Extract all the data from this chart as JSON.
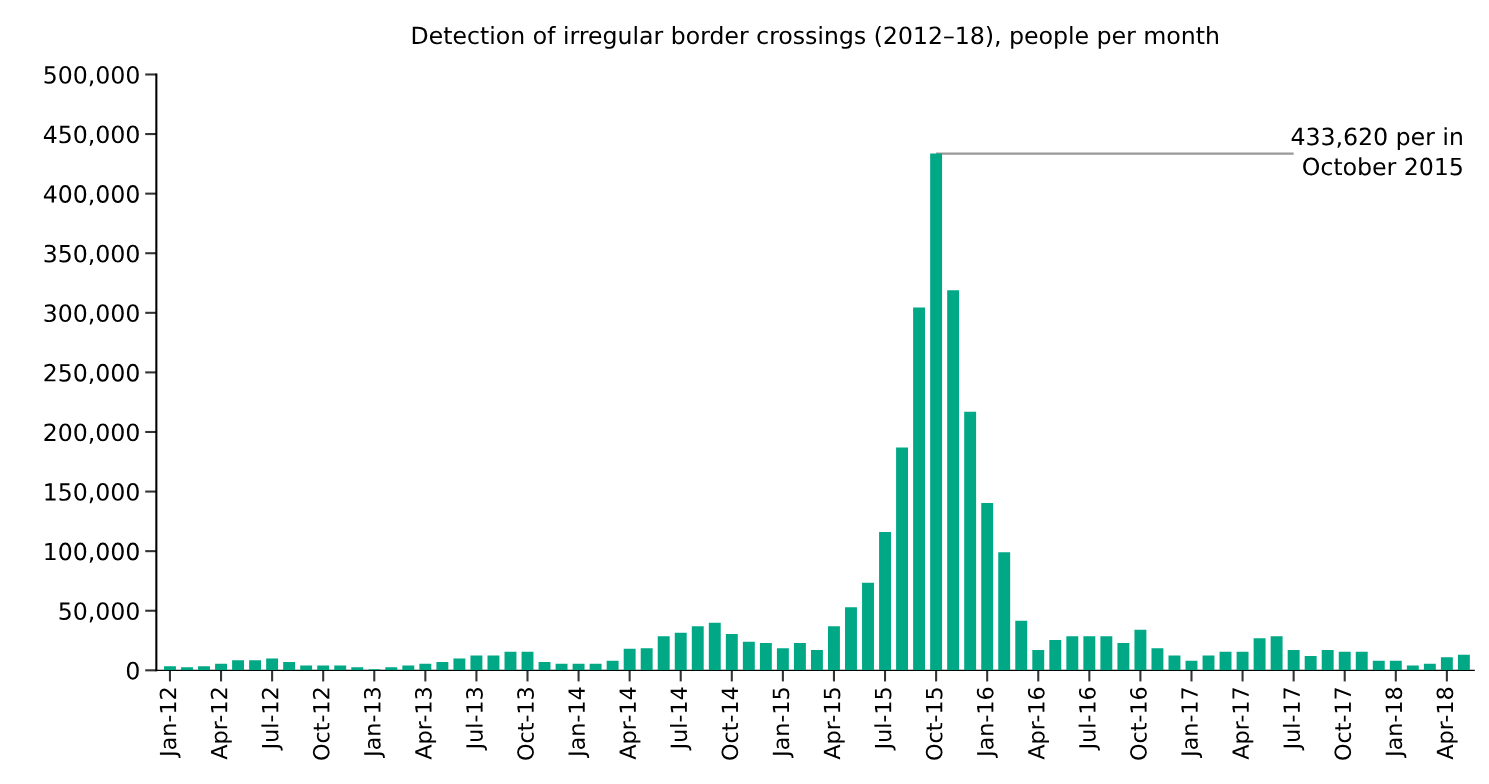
{
  "chart_data": {
    "type": "bar",
    "title": "Detection of irregular border crossings (2012–18), people per month",
    "categories": [
      "Jan-12",
      null,
      null,
      "Apr-12",
      null,
      null,
      "Jul-12",
      null,
      null,
      "Oct-12",
      null,
      null,
      "Jan-13",
      null,
      null,
      "Apr-13",
      null,
      null,
      "Jul-13",
      null,
      null,
      "Oct-13",
      null,
      null,
      "Jan-14",
      null,
      null,
      "Apr-14",
      null,
      null,
      "Jul-14",
      null,
      null,
      "Oct-14",
      null,
      null,
      "Jan-15",
      null,
      null,
      "Apr-15",
      null,
      null,
      "Jul-15",
      null,
      null,
      "Oct-15",
      null,
      null,
      "Jan-16",
      null,
      null,
      "Apr-16",
      null,
      null,
      "Jul-16",
      null,
      null,
      "Oct-16",
      null,
      null,
      "Jan-17",
      null,
      null,
      "Apr-17",
      null,
      null,
      "Jul-17",
      null,
      null,
      "Oct-17",
      null,
      null,
      "Jan-18",
      null,
      null,
      "Apr-18",
      null
    ],
    "values": [
      3500,
      2500,
      3500,
      5500,
      8500,
      8500,
      10000,
      7000,
      4000,
      4000,
      4000,
      2500,
      1000,
      2500,
      4000,
      5500,
      7000,
      10000,
      12500,
      12500,
      15500,
      15500,
      7000,
      5500,
      5500,
      5500,
      8000,
      18000,
      18500,
      28500,
      31500,
      37000,
      40000,
      30500,
      24000,
      23000,
      18500,
      23000,
      17000,
      37000,
      53000,
      73500,
      116000,
      187000,
      304500,
      433620,
      319000,
      217000,
      140500,
      99000,
      41500,
      17000,
      25500,
      28500,
      28500,
      28500,
      23000,
      34000,
      18500,
      12500,
      8000,
      12500,
      15500,
      15500,
      27000,
      28500,
      17000,
      12000,
      17000,
      15500,
      15500,
      8000,
      8000,
      4000,
      5500,
      11000,
      13000
    ],
    "color": "#00a886",
    "ylim": [
      0,
      500000
    ],
    "yticks": [
      0,
      {
        "value": 50000,
        "label": "50,000"
      },
      {
        "value": 100000,
        "label": "100,000"
      },
      {
        "value": 150000,
        "label": "150,000"
      },
      {
        "value": 200000,
        "label": "200,000"
      },
      {
        "value": 250000,
        "label": "250,000"
      },
      {
        "value": 300000,
        "label": "300,000"
      },
      {
        "value": 350000,
        "label": "350,000"
      },
      {
        "value": 400000,
        "label": "400,000"
      },
      {
        "value": 450000,
        "label": "450,000"
      },
      {
        "value": 500000,
        "label": "500,000"
      }
    ],
    "annotations": [
      {
        "text": "433,620 per in\nOctober 2015",
        "x": "Oct-15",
        "y": 433620
      }
    ],
    "grid": false,
    "legend": false
  }
}
